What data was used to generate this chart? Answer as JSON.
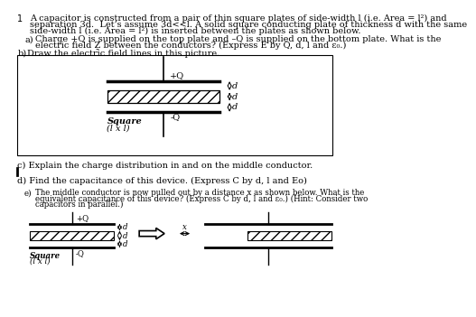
{
  "bg_color": "#ffffff",
  "text_color": "#000000",
  "fs_body": 7.0,
  "fs_small": 6.2,
  "fs_label": 7.0,
  "line1": "A capacitor is constructed from a pair of thin square plates of side-width l (i.e. Area = l²) and",
  "line2": "separation 3d.  Let’s assume 3d<<l. A solid square conducting plate of thickness d with the same",
  "line3": "side-width l (i.e. Area = l²) is inserted between the plates as shown below.",
  "a_text1": "Charge +Q is supplied on the top plate and –Q is supplied on the bottom plate. What is the",
  "a_text2": "electric field Ẕ between the conductors? (Express E by Q, d, l and ε₀.)",
  "b_text": "Draw the electric field lines in this picture.",
  "c_text": "c) Explain the charge distribution in and on the middle conductor.",
  "d_text": "d) Find the capacitance of this device. (Express C by d, l and Eo)",
  "e_text1": "The middle conductor is now pulled out by a distance x as shown below. What is the",
  "e_text2": "equivalent capacitance of this device? (Express C by d, l and ε₀.) (Hint: Consider two",
  "e_text3": "capacitors in parallel.)"
}
